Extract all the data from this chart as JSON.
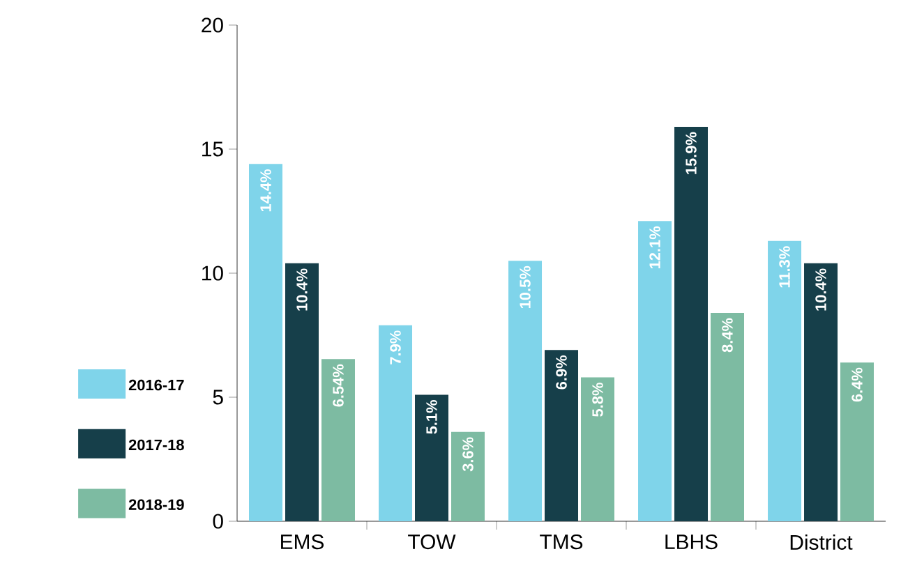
{
  "chart_data": {
    "type": "bar",
    "categories": [
      "EMS",
      "TOW",
      "TMS",
      "LBHS",
      "District"
    ],
    "series": [
      {
        "name": "2016-17",
        "color": "#7fd4ea",
        "values": [
          14.4,
          7.9,
          10.5,
          12.1,
          11.3
        ],
        "value_labels": [
          "14.4%",
          "7.9%",
          "10.5%",
          "12.1%",
          "11.3%"
        ]
      },
      {
        "name": "2017-18",
        "color": "#163f4a",
        "values": [
          10.4,
          5.1,
          6.9,
          15.9,
          10.4
        ],
        "value_labels": [
          "10.4%",
          "5.1%",
          "6.9%",
          "15.9%",
          "10.4%"
        ]
      },
      {
        "name": "2018-19",
        "color": "#7dbba2",
        "values": [
          6.54,
          3.6,
          5.8,
          8.4,
          6.4
        ],
        "value_labels": [
          "6.54%",
          "3.6%",
          "5.8%",
          "8.4%",
          "6.4%"
        ]
      }
    ],
    "ylim": [
      0,
      20
    ],
    "yticks": [
      0,
      5,
      10,
      15,
      20
    ],
    "grid": false,
    "legend": "bottom left"
  }
}
